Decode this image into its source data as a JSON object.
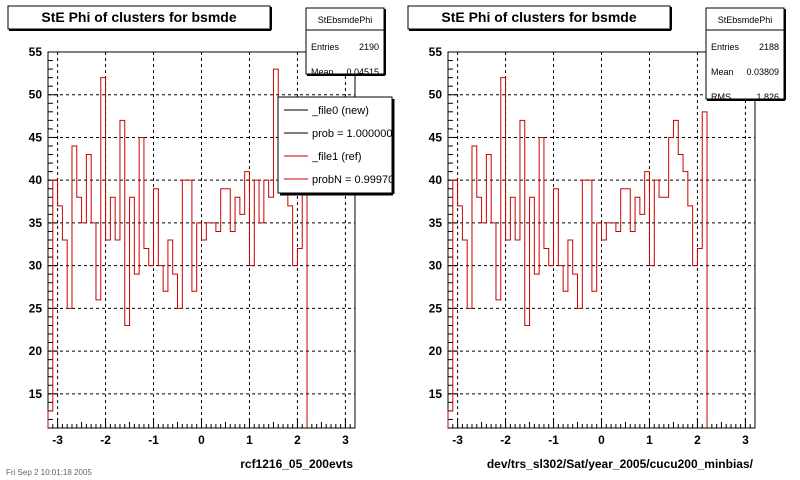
{
  "chart_data": [
    {
      "type": "step",
      "title": "StE Phi of clusters for bsmde",
      "stats": {
        "name": "StEbsmdePhi",
        "rows": [
          {
            "label": "Entries",
            "value": "2190"
          },
          {
            "label": "Mean",
            "value": "0.04515"
          }
        ]
      },
      "xlim": [
        -3.2,
        3.2
      ],
      "ylim": [
        11,
        55
      ],
      "xticks": [
        -3,
        -2,
        -1,
        0,
        1,
        2,
        3
      ],
      "yticks": [
        15,
        20,
        25,
        30,
        35,
        40,
        45,
        50,
        55
      ],
      "xlabel": "rcf1216_05_200evts",
      "grid": true,
      "legend": {
        "placement": "top-right",
        "entries": [
          "_file0 (new)",
          "prob = 1.000000",
          "_file1 (ref)",
          "probN = 0.99970"
        ]
      },
      "bins": {
        "edges_start": -3.2,
        "width": 0.1,
        "values": [
          13,
          40,
          37,
          33,
          25,
          44,
          38,
          35,
          43,
          35,
          26,
          52,
          33,
          38,
          33,
          47,
          23,
          38,
          29,
          45,
          32,
          30,
          39,
          30,
          27,
          33,
          29,
          25,
          40,
          40,
          27,
          35,
          33,
          35,
          35,
          34,
          39,
          39,
          34,
          38,
          36,
          41,
          30,
          40,
          35,
          40,
          38,
          53,
          43,
          41,
          37,
          30,
          32,
          48
        ]
      }
    },
    {
      "type": "step",
      "title": "StE Phi of clusters for bsmde",
      "stats": {
        "name": "StEbsmdePhi",
        "rows": [
          {
            "label": "Entries",
            "value": "2188"
          },
          {
            "label": "Mean",
            "value": "0.03809"
          },
          {
            "label": "RMS",
            "value": "1.826"
          }
        ]
      },
      "xlim": [
        -3.2,
        3.2
      ],
      "ylim": [
        11,
        55
      ],
      "xticks": [
        -3,
        -2,
        -1,
        0,
        1,
        2,
        3
      ],
      "yticks": [
        15,
        20,
        25,
        30,
        35,
        40,
        45,
        50,
        55
      ],
      "xlabel": "dev/trs_sl302/Sat/year_2005/cucu200_minbias/",
      "grid": true,
      "bins": {
        "edges_start": -3.2,
        "width": 0.1,
        "values": [
          13,
          40,
          37,
          33,
          25,
          44,
          38,
          35,
          43,
          35,
          26,
          52,
          33,
          38,
          33,
          47,
          23,
          38,
          29,
          45,
          32,
          30,
          39,
          30,
          27,
          33,
          29,
          25,
          40,
          40,
          27,
          35,
          33,
          35,
          35,
          34,
          39,
          39,
          34,
          38,
          36,
          41,
          30,
          40,
          38,
          38,
          45,
          47,
          43,
          41,
          37,
          30,
          32,
          48
        ]
      }
    }
  ],
  "colors": {
    "hist_ref": "#cc0000",
    "hist_new": "#000000",
    "grid": "#000000",
    "background": "#ffffff"
  },
  "footer_date": "Fri Sep 2 10:01:18 2005"
}
